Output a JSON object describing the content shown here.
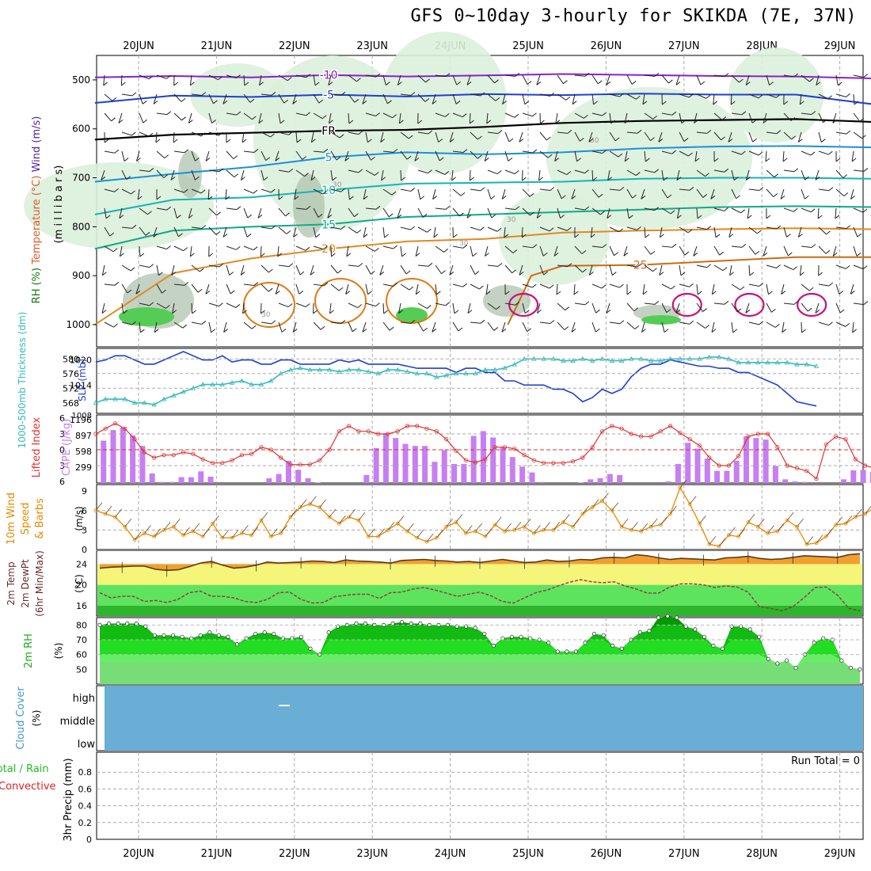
{
  "title": "GFS 0~10day 3-hourly for SKIKDA (7E, 37N)",
  "dates": [
    "20JUN",
    "21JUN",
    "22JUN",
    "23JUN",
    "24JUN",
    "25JUN",
    "26JUN",
    "27JUN",
    "28JUN",
    "29JUN"
  ],
  "colors": {
    "axis": "#000000",
    "grid": "#aaaaaa",
    "rh_shade": "#dcefdc",
    "rh_dark": "#a9bfa9",
    "slp": "#1f3fd0",
    "thickness": "#33bbbb",
    "lifted": "#dd3333",
    "cape": "#c77ef2",
    "wind": "#e68a00",
    "temp_fill": "#f0a030",
    "yellow": "#f5f57a",
    "green_light": "#5ee35e",
    "green_dark": "#2db52d",
    "dewpt": "#8b3a3a",
    "rh_green": "#11cc11",
    "cloud": "#6aaed6",
    "precip_green": "#22bb22",
    "precip_red": "#dd2222"
  },
  "chart_data": [
    {
      "id": "upper_air",
      "type": "contour",
      "title": "Temperature (°C) / Wind (m/s) / RH (%)",
      "ylabel": "millibars",
      "ylabel_parts": [
        "RH (%)",
        "Temperature (°C)",
        "Wind (m/s)",
        "(m i l l i b a r s)"
      ],
      "yticks": [
        500,
        600,
        700,
        800,
        900,
        1000
      ],
      "ylim": [
        450,
        1000
      ],
      "xlim": [
        0,
        10.2
      ],
      "isotherms": [
        {
          "label": "-10",
          "color": "#8a22c8",
          "points": [
            [
              0,
              495
            ],
            [
              1,
              492
            ],
            [
              2,
              495
            ],
            [
              3,
              490
            ],
            [
              4,
              493
            ],
            [
              5,
              491
            ],
            [
              6,
              488
            ],
            [
              7,
              490
            ],
            [
              8,
              492
            ],
            [
              9,
              493
            ],
            [
              10,
              497
            ]
          ]
        },
        {
          "label": "-5",
          "color": "#1f3fd0",
          "points": [
            [
              0,
              547
            ],
            [
              1,
              532
            ],
            [
              2,
              535
            ],
            [
              3,
              530
            ],
            [
              4,
              534
            ],
            [
              5,
              529
            ],
            [
              6,
              531
            ],
            [
              7,
              528
            ],
            [
              8,
              530
            ],
            [
              9,
              530
            ],
            [
              10,
              550
            ]
          ]
        },
        {
          "label": "FR",
          "color": "#000000",
          "points": [
            [
              0,
              622
            ],
            [
              1,
              612
            ],
            [
              2,
              608
            ],
            [
              3,
              604
            ],
            [
              4,
              602
            ],
            [
              5,
              596
            ],
            [
              6,
              588
            ],
            [
              7,
              584
            ],
            [
              8,
              582
            ],
            [
              9,
              580
            ],
            [
              10,
              586
            ]
          ]
        },
        {
          "label": "5",
          "color": "#1a90d8",
          "points": [
            [
              0,
              708
            ],
            [
              1,
              692
            ],
            [
              2,
              678
            ],
            [
              3,
              658
            ],
            [
              4,
              648
            ],
            [
              5,
              652
            ],
            [
              6,
              648
            ],
            [
              7,
              640
            ],
            [
              8,
              636
            ],
            [
              9,
              635
            ],
            [
              10,
              638
            ]
          ]
        },
        {
          "label": "10",
          "color": "#16b4b4",
          "points": [
            [
              0,
              775
            ],
            [
              1,
              745
            ],
            [
              2,
              740
            ],
            [
              3,
              725
            ],
            [
              4,
              712
            ],
            [
              5,
              710
            ],
            [
              6,
              708
            ],
            [
              7,
              702
            ],
            [
              8,
              700
            ],
            [
              9,
              700
            ],
            [
              10,
              702
            ]
          ]
        },
        {
          "label": "15",
          "color": "#11aa88",
          "points": [
            [
              0,
              845
            ],
            [
              1,
              808
            ],
            [
              2,
              800
            ],
            [
              3,
              795
            ],
            [
              4,
              780
            ],
            [
              5,
              775
            ],
            [
              6,
              770
            ],
            [
              7,
              765
            ],
            [
              8,
              760
            ],
            [
              9,
              758
            ],
            [
              10,
              760
            ]
          ]
        },
        {
          "label": "20",
          "color": "#e08a20",
          "points": [
            [
              0,
              1000
            ],
            [
              1,
              895
            ],
            [
              2,
              865
            ],
            [
              3,
              845
            ],
            [
              4,
              830
            ],
            [
              5,
              825
            ],
            [
              6,
              812
            ],
            [
              7,
              808
            ],
            [
              8,
              805
            ],
            [
              9,
              803
            ],
            [
              10,
              805
            ]
          ]
        },
        {
          "label": "25",
          "color": "#d06a10",
          "points": [
            [
              5.3,
              1000
            ],
            [
              5.6,
              900
            ],
            [
              6,
              880
            ],
            [
              7,
              878
            ],
            [
              8,
              870
            ],
            [
              9,
              862
            ],
            [
              10,
              862
            ]
          ]
        }
      ],
      "magenta_contour_days": [
        5.5,
        7.6,
        8.4,
        9.2
      ],
      "rh_labels": [
        "30"
      ]
    },
    {
      "id": "slp_thickness",
      "type": "line",
      "title": "SLP (mb) / 1000-500mb Thickness (dm)",
      "ylabel": "SLP (mb)",
      "ylabel2": "1000-500mb Thickness (dm)",
      "y_left_ticks": [
        568,
        572,
        576,
        580
      ],
      "y_right_ticks": [
        1014,
        1020
      ],
      "y_right_low_label": "1008",
      "ylim_slp": [
        1008,
        1022
      ],
      "ylim_thick": [
        566,
        582
      ],
      "series": [
        {
          "name": "SLP",
          "axis": "slp",
          "values": [
            1019.5,
            1020,
            1021,
            1021,
            1020,
            1019,
            1019,
            1020,
            1021,
            1022,
            1021,
            1020,
            1020,
            1021,
            1019.5,
            1020,
            1020,
            1019,
            1019,
            1020,
            1020,
            1019,
            1019,
            1019,
            1019,
            1020,
            1019.5,
            1020,
            1019,
            1019,
            1019,
            1019,
            1018.5,
            1018,
            1018,
            1018,
            1018,
            1017,
            1018,
            1018,
            1017,
            1017,
            1015,
            1015,
            1014,
            1014,
            1014,
            1013,
            1013,
            1012,
            1010,
            1011,
            1013,
            1012,
            1013,
            1016,
            1018,
            1019,
            1019,
            1020,
            1019.5,
            1019,
            1018.5,
            1018.5,
            1018,
            1018,
            1017,
            1017,
            1016,
            1015,
            1014,
            1012,
            1010,
            1009.5,
            1009
          ]
        },
        {
          "name": "Thickness",
          "axis": "thick",
          "values": [
            568,
            569,
            569,
            569,
            568,
            568,
            567.5,
            569,
            570,
            571,
            572,
            573,
            573,
            573,
            573.5,
            574,
            573,
            573,
            574,
            576,
            577,
            577.5,
            577,
            577,
            577,
            576.5,
            577,
            577,
            576.5,
            576,
            577,
            577,
            576.5,
            576,
            576,
            575,
            575.5,
            576,
            576,
            576,
            577,
            577,
            577.5,
            578.5,
            580,
            580,
            580,
            580,
            579.5,
            579.5,
            580,
            579.5,
            580,
            579.5,
            579.5,
            580,
            580,
            579.5,
            579.5,
            580,
            580,
            580,
            580,
            580.5,
            580.5,
            580,
            579,
            579,
            579,
            579,
            579,
            579,
            578.5,
            578.5,
            578
          ]
        }
      ]
    },
    {
      "id": "cape_lifted",
      "type": "bar",
      "title": "CAPE (J/kg) / Lifted Index",
      "ylabel": "CAPE (J/kg)",
      "ylabel2": "Lifted Index",
      "y_cape_ticks": [
        299,
        598,
        897,
        1196
      ],
      "y_li_ticks": [
        -6,
        -3,
        0,
        3,
        6
      ],
      "ylim_cape": [
        0,
        1196
      ],
      "ylim_li": [
        6,
        -6
      ],
      "cape_values": [
        800,
        1000,
        1050,
        900,
        700,
        180,
        20,
        20,
        110,
        110,
        220,
        120,
        0,
        0,
        0,
        0,
        0,
        90,
        170,
        420,
        250,
        90,
        10,
        0,
        0,
        0,
        0,
        150,
        660,
        940,
        850,
        740,
        700,
        700,
        400,
        620,
        360,
        360,
        890,
        980,
        860,
        670,
        490,
        310,
        200,
        20,
        0,
        0,
        0,
        10,
        70,
        90,
        170,
        150,
        0,
        0,
        0,
        0,
        30,
        360,
        760,
        650,
        460,
        230,
        230,
        420,
        880,
        850,
        820,
        320,
        70,
        30,
        20,
        0,
        0,
        0,
        70,
        240,
        250,
        210,
        0,
        0,
        130,
        120
      ],
      "li_values": [
        -3,
        -4,
        -5,
        -4,
        -2,
        0.5,
        1.5,
        1,
        1,
        0.5,
        0.8,
        1.8,
        2.5,
        2.5,
        2,
        1,
        0.8,
        -0.5,
        0,
        1.5,
        2.8,
        2.8,
        2.8,
        2,
        0,
        -3.5,
        -4.5,
        -3.5,
        -3.5,
        -3,
        -3,
        -3.5,
        -4.5,
        -4.5,
        -4,
        -3.5,
        -2,
        0.2,
        2,
        2.4,
        1.8,
        -0.5,
        -0.5,
        -0.2,
        1,
        2,
        2.5,
        2.5,
        2.5,
        2.2,
        1.5,
        -0.5,
        -3.5,
        -4.5,
        -4,
        -3,
        -2.5,
        -2.5,
        -3.5,
        -4.5,
        -3.2,
        -2,
        -0.8,
        1.5,
        3,
        3,
        1.2,
        -2.5,
        -3,
        -3,
        -0.5,
        3,
        3.5,
        4,
        5.5,
        -1,
        -2.5,
        -2,
        1.8,
        3,
        3.5,
        -0.5,
        -1,
        -0.5,
        3,
        6
      ]
    },
    {
      "id": "wind10m",
      "type": "line",
      "title": "10m Wind Speed & Barbs",
      "ylabel": "(m/s)",
      "label_lines": [
        "10m Wind",
        "Speed",
        "& Barbs"
      ],
      "yticks": [
        0,
        3,
        6,
        9
      ],
      "ylim": [
        0,
        10
      ],
      "values": [
        6,
        5.5,
        5,
        3.5,
        1.5,
        2.5,
        2,
        3,
        3.5,
        2.2,
        2.8,
        2,
        4,
        1.8,
        1.8,
        2.5,
        2.2,
        4.5,
        2,
        2.5,
        5,
        6.5,
        7,
        6.5,
        5,
        4,
        5,
        4.5,
        2,
        2,
        3,
        4,
        2.8,
        1.8,
        1.2,
        1.8,
        3.5,
        4.2,
        2.5,
        2.8,
        2,
        3.8,
        2.8,
        3,
        3.5,
        2.5,
        3,
        3,
        4.2,
        3.5,
        5.5,
        6.5,
        7.5,
        6,
        3.5,
        3,
        2.8,
        3.5,
        3.8,
        5.5,
        9.5,
        7,
        4,
        0.8,
        0.5,
        2.2,
        2,
        4.2,
        3.5,
        2.5,
        2.8,
        4.5,
        3.5,
        0.8,
        1,
        2,
        3.8,
        4,
        5,
        5.5,
        6.5,
        8,
        7,
        4.5,
        2.5,
        2,
        1.5,
        1.5,
        2.5,
        2,
        3,
        2.5,
        3.5,
        2,
        2.8,
        2.5
      ]
    },
    {
      "id": "temp2m",
      "type": "area",
      "title": "2m Temp / 2m DewPt (6hr Min/Max)",
      "ylabel": "(°C)",
      "label_lines": [
        "2m Temp",
        "2m DewPt",
        "(6hr Min/Max)"
      ],
      "yticks": [
        16,
        20,
        24
      ],
      "ylim": [
        14,
        26.5
      ],
      "temp_values": [
        23.2,
        23.4,
        23.5,
        23.6,
        23.6,
        23,
        22.8,
        22.9,
        23.5,
        24.2,
        24.5,
        23.8,
        23.2,
        23.4,
        23.8,
        24.4,
        24.2,
        24.3,
        24.4,
        24.6,
        24.5,
        24.3,
        24.8,
        24.6,
        24.5,
        24.4,
        24.2,
        24.7,
        24.8,
        24.9,
        24.7,
        24.6,
        24.4,
        24.5,
        24.3,
        24.6,
        24.9,
        24.6,
        24.3,
        24.4,
        24.8,
        24.5,
        24.6,
        24.9,
        24.8,
        25.2,
        25.3,
        25.2,
        25.8,
        25.6,
        25.2,
        24.9,
        25.1,
        25,
        24.9,
        24.8,
        25.2,
        25.3,
        25.5,
        25.1,
        24.9,
        25.0,
        25.3,
        25.6,
        25.5,
        25.4,
        25.3,
        25.8,
        26
      ],
      "dewpt_values": [
        18.5,
        17.5,
        17.8,
        17.8,
        16.8,
        17,
        16.6,
        17.2,
        18.5,
        18.8,
        17.8,
        17.8,
        17.5,
        16.8,
        16.6,
        17.2,
        18.5,
        18.6,
        17.2,
        16.5,
        16.6,
        17.7,
        18,
        18.2,
        18.2,
        17.4,
        18.5,
        18.6,
        19.2,
        19.5,
        19,
        18.4,
        17.8,
        18.2,
        18.6,
        17.9,
        16.8,
        16.5,
        17.5,
        18.5,
        19,
        19.8,
        20.5,
        21,
        20.6,
        20.4,
        20.6,
        19.8,
        19.2,
        18.4,
        18.4,
        19.6,
        20.2,
        20.2,
        20,
        19.5,
        19.8,
        19.6,
        18.6,
        15.8,
        15.5,
        15,
        15.8,
        17.5,
        19.5,
        19.6,
        18,
        15.5,
        15
      ]
    },
    {
      "id": "rh2m",
      "type": "area",
      "title": "2m RH",
      "ylabel": "(%)",
      "label_lines": [
        "2m RH"
      ],
      "yticks": [
        50,
        60,
        70,
        80
      ],
      "ylim": [
        40,
        85
      ],
      "values": [
        80,
        81,
        81,
        81,
        81,
        79,
        73,
        73,
        73,
        72,
        71,
        73,
        75,
        73,
        72,
        67,
        71,
        74,
        75,
        74,
        71,
        71,
        72,
        64,
        60,
        75,
        79,
        80,
        81,
        81,
        80,
        80,
        81,
        82,
        81,
        81,
        80,
        80,
        80,
        79,
        79,
        78,
        74,
        66,
        71,
        72,
        72,
        71,
        70,
        68,
        62,
        62,
        62,
        68,
        74,
        73,
        66,
        64,
        70,
        75,
        76,
        85,
        86,
        85,
        79,
        77,
        72,
        66,
        64,
        79,
        79,
        77,
        72,
        57,
        54,
        56,
        51,
        60,
        68,
        71,
        70,
        56,
        51,
        50
      ]
    },
    {
      "id": "cloud_cover",
      "type": "heatmap",
      "title": "Cloud Cover",
      "ylabel": "(%)",
      "label_lines": [
        "Cloud Cover"
      ],
      "yticks": [
        "high",
        "middle",
        "low"
      ],
      "levels": [
        "high",
        "middle",
        "low"
      ],
      "values": [
        0,
        0,
        0
      ]
    },
    {
      "id": "precip3hr",
      "type": "bar",
      "title": "3hr Precip (mm) Total / Rain / Convective",
      "ylabel": "3hr Precip (mm)",
      "label_parts": [
        "Total / Rain",
        "Convective"
      ],
      "yticks": [
        0,
        0.2,
        0.4,
        0.6,
        0.8
      ],
      "ylim": [
        0,
        1.0
      ],
      "run_total_label": "Run Total = 0",
      "values": []
    }
  ]
}
